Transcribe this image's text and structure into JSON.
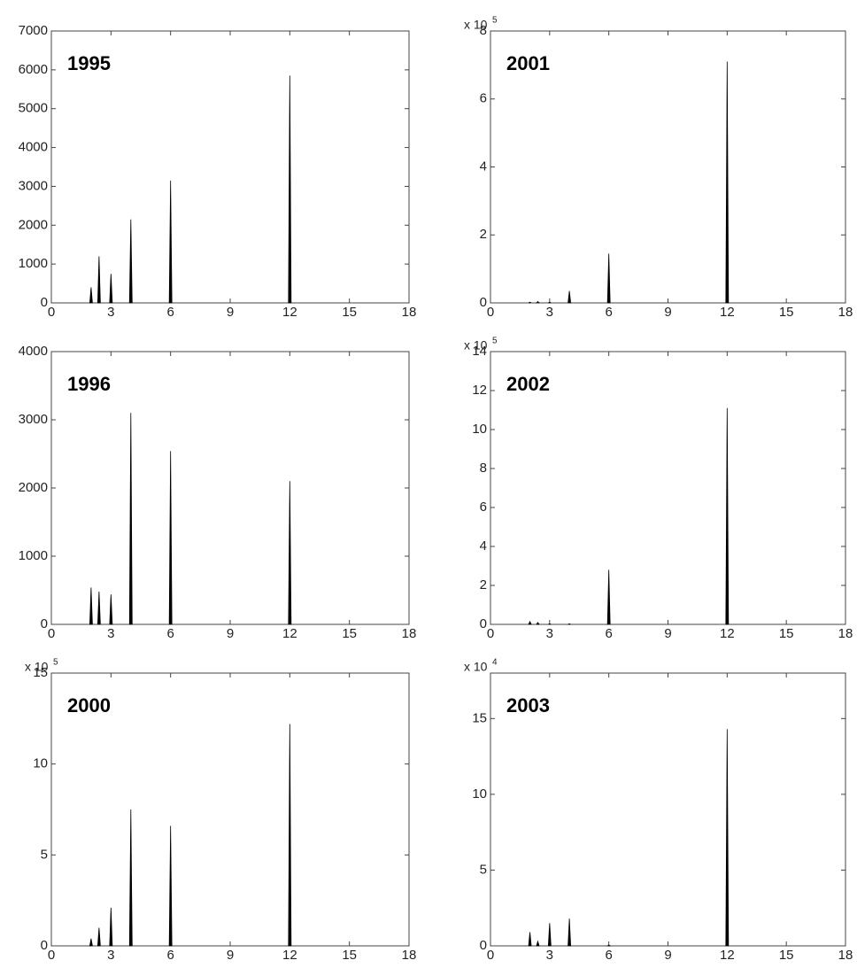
{
  "chart_data": [
    {
      "type": "stem",
      "title": "1995",
      "x": [
        2,
        2.4,
        3,
        4,
        6,
        12
      ],
      "values": [
        400,
        1200,
        750,
        2150,
        3150,
        5850
      ],
      "color": "#000000",
      "xlim": [
        0,
        18
      ],
      "xticks": [
        0,
        3,
        6,
        9,
        12,
        15,
        18
      ],
      "ylim": [
        0,
        7000
      ],
      "yticks": [
        0,
        1000,
        2000,
        3000,
        4000,
        5000,
        6000,
        7000
      ]
    },
    {
      "type": "stem",
      "title": "2001",
      "x": [
        2,
        2.4,
        3,
        4,
        6,
        12
      ],
      "values": [
        0.02,
        0.04,
        0.02,
        0.35,
        1.45,
        7.1
      ],
      "color": "#000000",
      "xlim": [
        0,
        18
      ],
      "xticks": [
        0,
        3,
        6,
        9,
        12,
        15,
        18
      ],
      "ylim": [
        0,
        8
      ],
      "yticks": [
        0,
        2,
        4,
        6,
        8
      ],
      "y_multiplier": "x 10",
      "y_multiplier_exponent": 5
    },
    {
      "type": "stem",
      "title": "1996",
      "x": [
        2,
        2.4,
        3,
        4,
        6,
        12
      ],
      "values": [
        540,
        480,
        440,
        3100,
        2540,
        2100
      ],
      "color": "#000000",
      "xlim": [
        0,
        18
      ],
      "xticks": [
        0,
        3,
        6,
        9,
        12,
        15,
        18
      ],
      "ylim": [
        0,
        4000
      ],
      "yticks": [
        0,
        1000,
        2000,
        3000,
        4000
      ]
    },
    {
      "type": "stem",
      "title": "2002",
      "x": [
        2,
        2.4,
        3,
        4,
        6,
        12
      ],
      "values": [
        0.15,
        0.1,
        0.03,
        0.03,
        2.8,
        11.1
      ],
      "color": "#000000",
      "xlim": [
        0,
        18
      ],
      "xticks": [
        0,
        3,
        6,
        9,
        12,
        15,
        18
      ],
      "ylim": [
        0,
        14
      ],
      "yticks": [
        0,
        2,
        4,
        6,
        8,
        10,
        12,
        14
      ],
      "y_multiplier": "x 10",
      "y_multiplier_exponent": 5
    },
    {
      "type": "stem",
      "title": "2000",
      "x": [
        2,
        2.4,
        3,
        4,
        6,
        12
      ],
      "values": [
        0.4,
        1.0,
        2.1,
        7.5,
        6.6,
        12.2
      ],
      "color": "#000000",
      "xlim": [
        0,
        18
      ],
      "xticks": [
        0,
        3,
        6,
        9,
        12,
        15,
        18
      ],
      "ylim": [
        0,
        15
      ],
      "yticks": [
        0,
        5,
        10,
        15
      ],
      "y_multiplier": "x 10",
      "y_multiplier_exponent": 5
    },
    {
      "type": "stem",
      "title": "2003",
      "x": [
        2,
        2.4,
        3,
        4,
        6,
        12
      ],
      "values": [
        0.9,
        0.3,
        1.5,
        1.8,
        0.05,
        14.3
      ],
      "color": "#000000",
      "xlim": [
        0,
        18
      ],
      "xticks": [
        0,
        3,
        6,
        9,
        12,
        15,
        18
      ],
      "ylim": [
        0,
        18
      ],
      "yticks": [
        0,
        5,
        10,
        15
      ],
      "y_multiplier": "x 10",
      "y_multiplier_exponent": 4
    }
  ]
}
